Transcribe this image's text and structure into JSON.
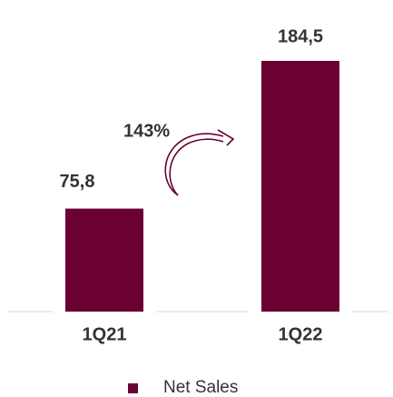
{
  "chart_data": {
    "type": "bar",
    "categories": [
      "1Q21",
      "1Q22"
    ],
    "series": [
      {
        "name": "Net Sales",
        "color": "#6b0032",
        "values": [
          75.8,
          184.5
        ],
        "value_labels": [
          "75,8",
          "184,5"
        ]
      }
    ],
    "annotation": "143%"
  }
}
